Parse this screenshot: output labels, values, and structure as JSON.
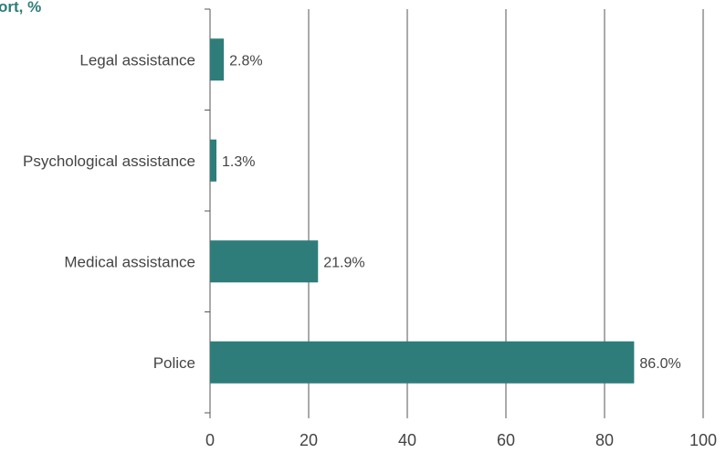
{
  "chart_data": {
    "type": "bar",
    "orientation": "horizontal",
    "title": "ort, %",
    "categories": [
      "Legal assistance",
      "Psychological assistance",
      "Medical assistance",
      "Police"
    ],
    "values": [
      2.8,
      1.3,
      21.9,
      86.0
    ],
    "value_labels": [
      "2.8%",
      "1.3%",
      "21.9%",
      "86.0%"
    ],
    "xlim": [
      0,
      100
    ],
    "x_ticks": [
      0,
      20,
      40,
      60,
      80,
      100
    ],
    "x_tick_labels": [
      "0",
      "20",
      "40",
      "60",
      "80",
      "100"
    ],
    "grid": "vertical",
    "legend": "none"
  },
  "colors": {
    "bar": "#2e7d7a",
    "title": "#2e7d7a",
    "grid": "#555555",
    "axis": "#555555"
  }
}
